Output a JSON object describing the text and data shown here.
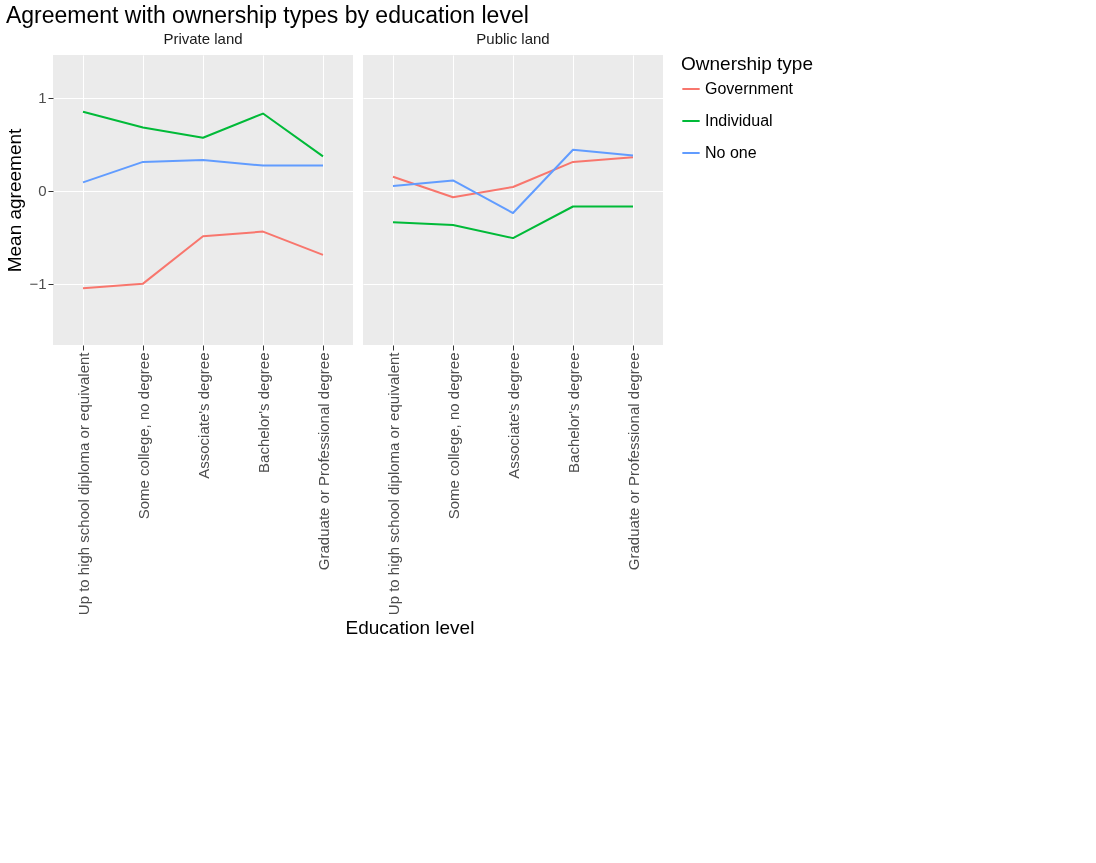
{
  "chart_data": [
    {
      "type": "line",
      "title": "Agreement with ownership types by education level",
      "subtitle": "Private land",
      "xlabel": "Education level",
      "ylabel": "Mean agreement",
      "legend_title": "Ownership type",
      "legend": "right",
      "grid": true,
      "categories": [
        "Up to high school diploma or equivalent",
        "Some college, no degree",
        "Associate's degree",
        "Bachelor's degree",
        "Graduate or Professional degree"
      ],
      "ylim": [
        -1.66,
        1.46
      ],
      "yticks": [
        -1,
        0,
        1
      ],
      "series": [
        {
          "name": "Government",
          "color": "#f8766d",
          "values": [
            -1.05,
            -1.0,
            -0.49,
            -0.44,
            -0.69
          ]
        },
        {
          "name": "Individual",
          "color": "#00ba38",
          "values": [
            0.85,
            0.68,
            0.57,
            0.83,
            0.37
          ]
        },
        {
          "name": "No one",
          "color": "#619cff",
          "values": [
            0.09,
            0.31,
            0.33,
            0.27,
            0.27
          ]
        }
      ]
    },
    {
      "type": "line",
      "subtitle": "Public land",
      "legend": "right",
      "grid": true,
      "tick_labels": "x",
      "categories": [
        "Up to high school diploma or equivalent",
        "Some college, no degree",
        "Associate's degree",
        "Bachelor's degree",
        "Graduate or Professional degree"
      ],
      "ylim": [
        -1.66,
        1.46
      ],
      "yticks": [
        -1,
        0,
        1
      ],
      "series": [
        {
          "name": "Government",
          "color": "#f8766d",
          "values": [
            0.15,
            -0.07,
            0.04,
            0.31,
            0.36
          ]
        },
        {
          "name": "Individual",
          "color": "#00ba38",
          "values": [
            -0.34,
            -0.37,
            -0.51,
            -0.17,
            -0.17
          ]
        },
        {
          "name": "No one",
          "color": "#619cff",
          "values": [
            0.05,
            0.11,
            -0.24,
            0.44,
            0.38
          ]
        }
      ]
    }
  ]
}
